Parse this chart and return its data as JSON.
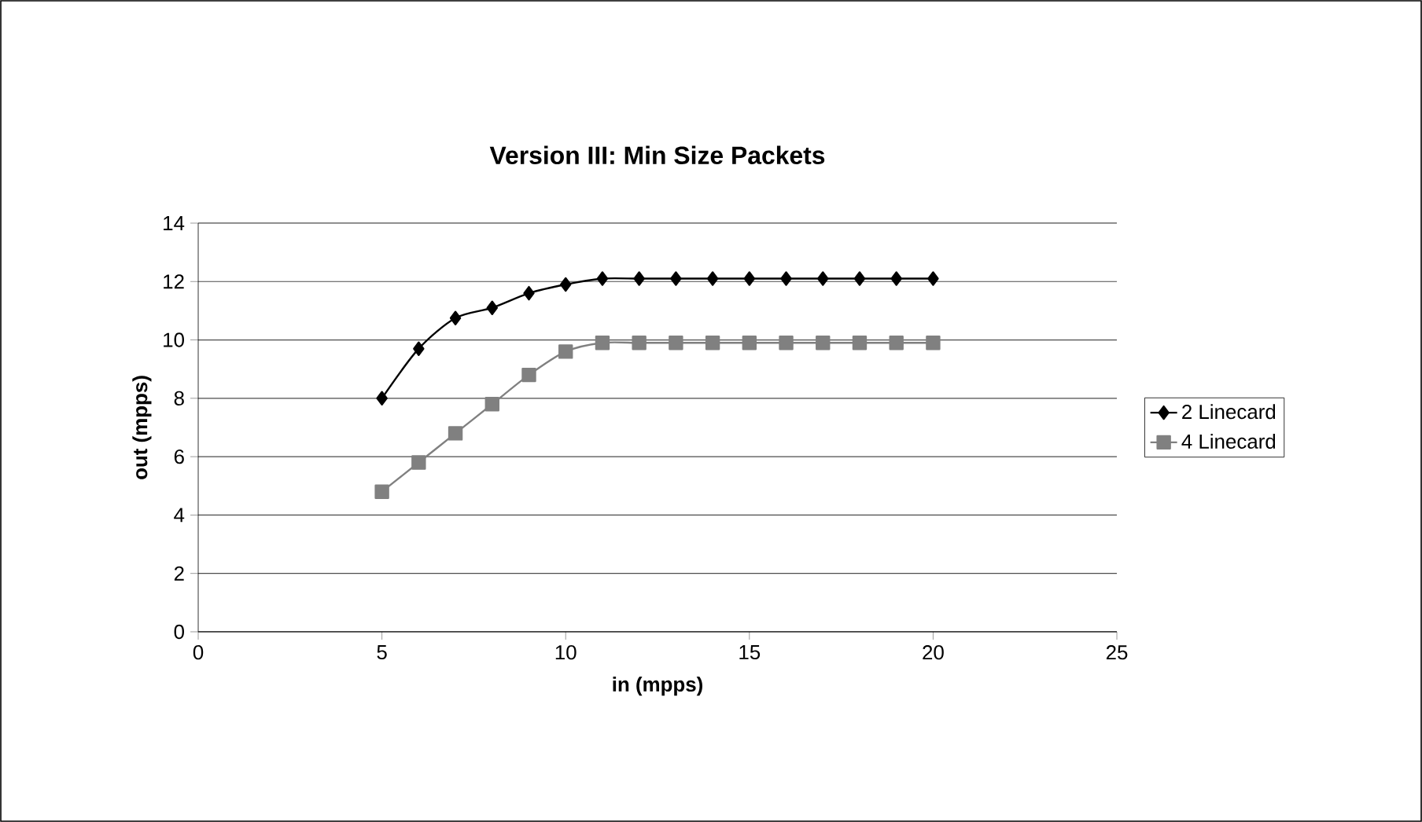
{
  "chart_data": {
    "type": "line",
    "title": "Version III: Min Size Packets",
    "xlabel": "in (mpps)",
    "ylabel": "out (mpps)",
    "x": [
      5,
      6,
      7,
      8,
      9,
      10,
      11,
      12,
      13,
      14,
      15,
      16,
      17,
      18,
      19,
      20
    ],
    "series": [
      {
        "name": "2 Linecard",
        "color": "#000000",
        "marker": "diamond",
        "values": [
          8.0,
          9.7,
          10.75,
          11.1,
          11.6,
          11.9,
          12.1,
          12.1,
          12.1,
          12.1,
          12.1,
          12.1,
          12.1,
          12.1,
          12.1,
          12.1
        ]
      },
      {
        "name": "4 Linecard",
        "color": "#808080",
        "marker": "square",
        "values": [
          4.8,
          5.8,
          6.8,
          7.8,
          8.8,
          9.6,
          9.9,
          9.9,
          9.9,
          9.9,
          9.9,
          9.9,
          9.9,
          9.9,
          9.9,
          9.9
        ]
      }
    ],
    "xlim": [
      0,
      25
    ],
    "xticks": [
      0,
      5,
      10,
      15,
      20,
      25
    ],
    "ylim": [
      0,
      14
    ],
    "yticks": [
      0,
      2,
      4,
      6,
      8,
      10,
      12,
      14
    ],
    "grid": "y",
    "legend": "right",
    "line_style": "solid"
  }
}
